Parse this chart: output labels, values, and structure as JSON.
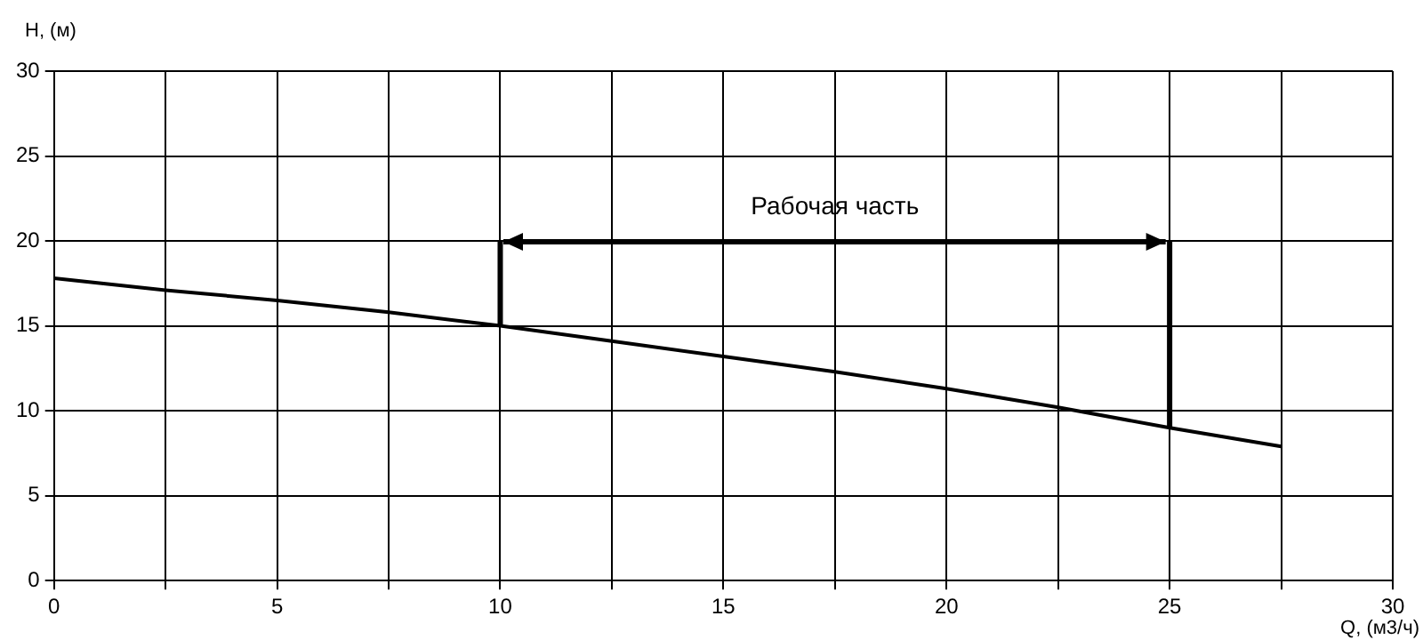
{
  "chart_data": {
    "type": "line",
    "xlabel": "Q, (м3/ч)",
    "ylabel": "H, (м)",
    "x": [
      0,
      2.5,
      5,
      7.5,
      10,
      12.5,
      15,
      17.5,
      20,
      22.5,
      25,
      27.5
    ],
    "series": [
      {
        "color": "#000000",
        "values": [
          17.8,
          17.1,
          16.5,
          15.8,
          15.0,
          14.1,
          13.2,
          12.3,
          11.3,
          10.2,
          9.0,
          7.9
        ]
      }
    ],
    "xlim": [
      0,
      30
    ],
    "xticks": [
      0,
      {
        "value": 2.5,
        "label": null
      },
      5,
      {
        "value": 7.5,
        "label": null
      },
      10,
      {
        "value": 12.5,
        "label": null
      },
      15,
      {
        "value": 17.5,
        "label": null
      },
      20,
      {
        "value": 22.5,
        "label": null
      },
      25,
      {
        "value": 27.5,
        "label": null
      },
      30
    ],
    "ylim": [
      0,
      30
    ],
    "yticks": [
      0,
      5,
      10,
      15,
      20,
      25,
      30
    ],
    "grid": true,
    "marker": "none",
    "line_style": "solid",
    "ref_lines": [
      {
        "axis": "x",
        "value": 10,
        "color": "#000000"
      },
      {
        "axis": "x",
        "value": 25,
        "color": "#000000"
      }
    ],
    "annotations": [
      "Рабочая часть"
    ]
  }
}
